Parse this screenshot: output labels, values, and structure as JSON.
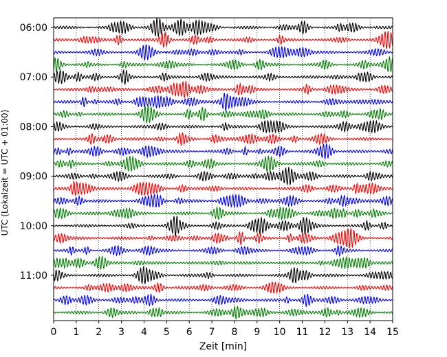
{
  "chart_data": {
    "type": "line",
    "title": "",
    "xlabel": "Zeit  [min]",
    "ylabel": "UTC (Lokalzeit = UTC + 01:00)",
    "xlim": [
      0,
      15
    ],
    "x_ticks": [
      0,
      1,
      2,
      3,
      4,
      5,
      6,
      7,
      8,
      9,
      10,
      11,
      12,
      13,
      14,
      15
    ],
    "y_ticks": [
      "06:00",
      "07:00",
      "08:00",
      "09:00",
      "10:00",
      "11:00"
    ],
    "grid": "vertical dotted",
    "rows_start": "06:00",
    "row_interval_min": 15,
    "row_count": 24,
    "row_colors": [
      "#000000",
      "#ff0000",
      "#0000ff",
      "#008000"
    ],
    "series_note": "Each row is a 15-minute seismogram trace; colors cycle black, red, blue, green."
  }
}
